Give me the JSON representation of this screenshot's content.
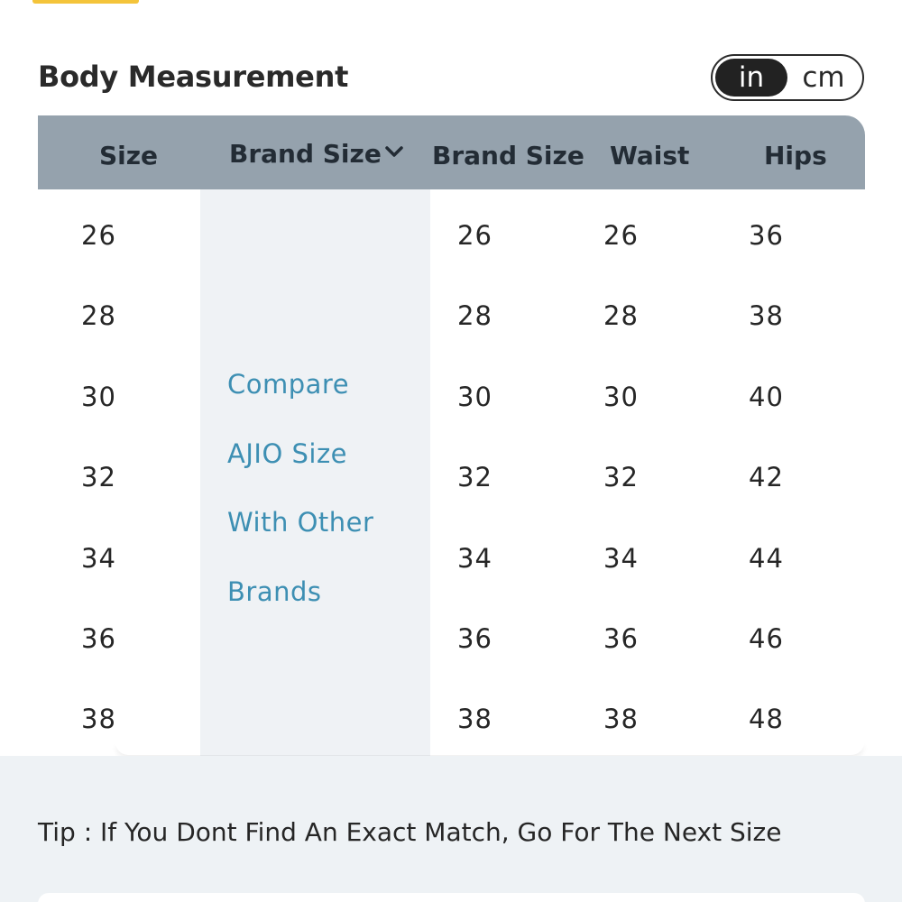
{
  "section": {
    "title": "Body Measurement"
  },
  "unit_toggle": {
    "options": [
      "in",
      "cm"
    ],
    "selected": "in"
  },
  "table": {
    "headers": {
      "size": "Size",
      "brand_size_dropdown": "Brand Size",
      "brand_size": "Brand Size",
      "waist": "Waist",
      "hips": "Hips"
    },
    "compare_lines": [
      "Compare",
      "AJIO Size",
      "With Other",
      "Brands"
    ],
    "rows": [
      {
        "size": "26",
        "brand_size": "26",
        "waist": "26",
        "hips": "36"
      },
      {
        "size": "28",
        "brand_size": "28",
        "waist": "28",
        "hips": "38"
      },
      {
        "size": "30",
        "brand_size": "30",
        "waist": "30",
        "hips": "40"
      },
      {
        "size": "32",
        "brand_size": "32",
        "waist": "32",
        "hips": "42"
      },
      {
        "size": "34",
        "brand_size": "34",
        "waist": "34",
        "hips": "44"
      },
      {
        "size": "36",
        "brand_size": "36",
        "waist": "36",
        "hips": "46"
      },
      {
        "size": "38",
        "brand_size": "38",
        "waist": "38",
        "hips": "48"
      }
    ]
  },
  "tip": {
    "text": "Tip : If You Dont Find An Exact Match, Go For The Next Size"
  },
  "colors": {
    "header_bg": "#95a2ad",
    "compare_bg": "#eff2f5",
    "link": "#3d8fb3",
    "accent": "#f4c43a"
  },
  "icons": {
    "dropdown": "chevron-down-icon"
  }
}
